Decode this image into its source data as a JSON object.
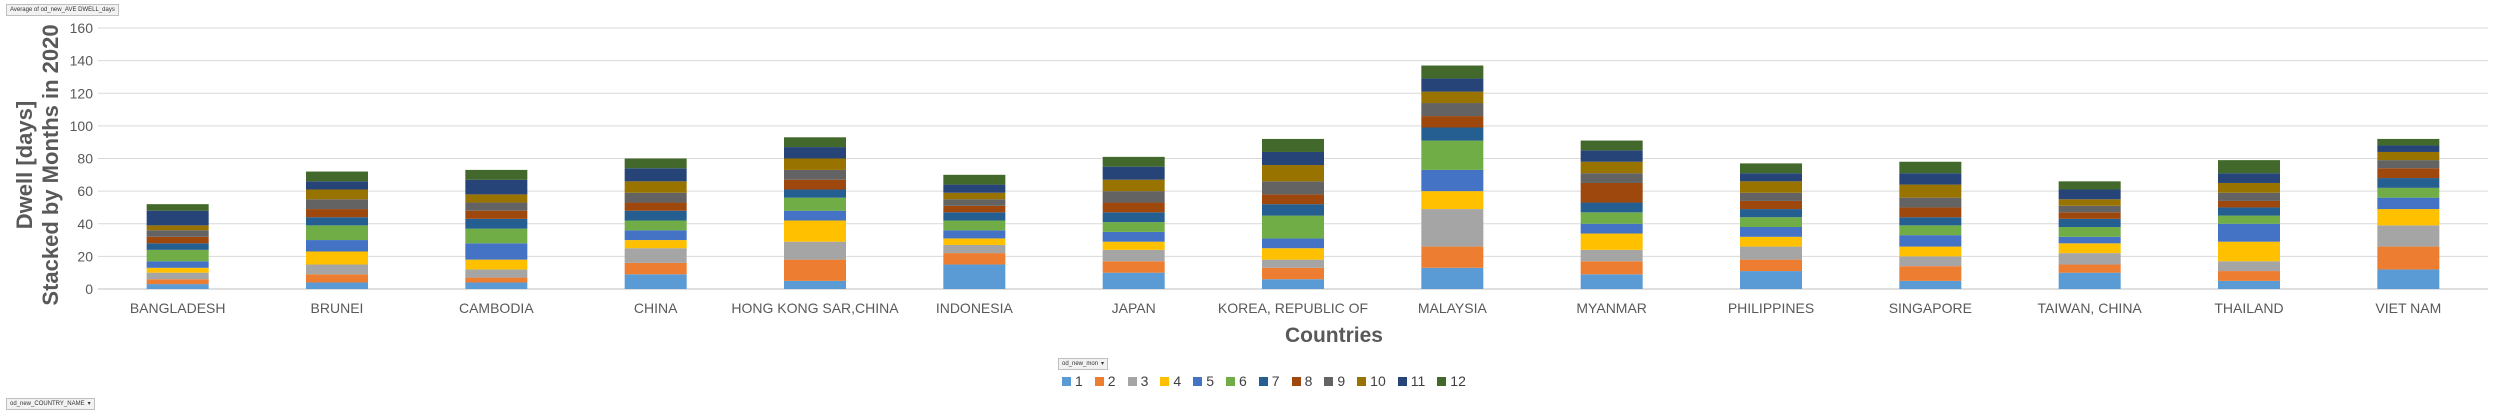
{
  "pivot": {
    "value_field": "Average of od_new_AVE DWELL_days",
    "legend_field": "od_new_mon",
    "axis_field": "od_new_COUNTRY_NAME"
  },
  "chart_data": {
    "type": "bar",
    "stacked": true,
    "ylabel_line1": "Dwell [days]",
    "ylabel_line2": "Stacked by Months in 2020",
    "xlabel": "Countries",
    "ylim": [
      0,
      160
    ],
    "yticks": [
      0,
      20,
      40,
      60,
      80,
      100,
      120,
      140,
      160
    ],
    "grid": true,
    "legend_position": "bottom",
    "categories": [
      "BANGLADESH",
      "BRUNEI",
      "CAMBODIA",
      "CHINA",
      "HONG KONG SAR,CHINA",
      "INDONESIA",
      "JAPAN",
      "KOREA, REPUBLIC OF",
      "MALAYSIA",
      "MYANMAR",
      "PHILIPPINES",
      "SINGAPORE",
      "TAIWAN, CHINA",
      "THAILAND",
      "VIET NAM"
    ],
    "series": [
      {
        "name": "1",
        "color": "#5b9bd5",
        "values": [
          3,
          4,
          4,
          9,
          5,
          15,
          10,
          6,
          13,
          9,
          11,
          5,
          10,
          5,
          12
        ]
      },
      {
        "name": "2",
        "color": "#ed7d31",
        "values": [
          3,
          5,
          3,
          7,
          13,
          7,
          7,
          7,
          13,
          8,
          7,
          9,
          5,
          6,
          14
        ]
      },
      {
        "name": "3",
        "color": "#a5a5a5",
        "values": [
          4,
          6,
          5,
          9,
          11,
          5,
          7,
          5,
          23,
          7,
          8,
          6,
          7,
          6,
          13
        ]
      },
      {
        "name": "4",
        "color": "#ffc000",
        "values": [
          3,
          8,
          6,
          5,
          13,
          4,
          5,
          7,
          11,
          10,
          6,
          6,
          6,
          12,
          10
        ]
      },
      {
        "name": "5",
        "color": "#4472c4",
        "values": [
          4,
          7,
          10,
          6,
          6,
          5,
          6,
          6,
          13,
          6,
          6,
          7,
          4,
          11,
          7
        ]
      },
      {
        "name": "6",
        "color": "#70ad47",
        "values": [
          7,
          9,
          9,
          6,
          8,
          6,
          6,
          14,
          18,
          7,
          6,
          6,
          6,
          5,
          6
        ]
      },
      {
        "name": "7",
        "color": "#255e91",
        "values": [
          4,
          5,
          6,
          6,
          5,
          5,
          6,
          7,
          8,
          6,
          5,
          5,
          5,
          5,
          6
        ]
      },
      {
        "name": "8",
        "color": "#9e480e",
        "values": [
          4,
          5,
          5,
          5,
          6,
          4,
          6,
          6,
          7,
          12,
          5,
          6,
          4,
          4,
          6
        ]
      },
      {
        "name": "9",
        "color": "#636363",
        "values": [
          4,
          6,
          5,
          6,
          6,
          4,
          7,
          8,
          8,
          6,
          5,
          6,
          4,
          5,
          5
        ]
      },
      {
        "name": "10",
        "color": "#997300",
        "values": [
          3,
          6,
          5,
          7,
          7,
          4,
          7,
          10,
          7,
          7,
          7,
          8,
          4,
          6,
          5
        ]
      },
      {
        "name": "11",
        "color": "#264478",
        "values": [
          9,
          5,
          9,
          8,
          7,
          5,
          8,
          8,
          8,
          7,
          5,
          7,
          6,
          6,
          4
        ]
      },
      {
        "name": "12",
        "color": "#43682b",
        "values": [
          4,
          6,
          6,
          6,
          6,
          6,
          6,
          8,
          8,
          6,
          6,
          7,
          5,
          8,
          4
        ]
      }
    ]
  }
}
